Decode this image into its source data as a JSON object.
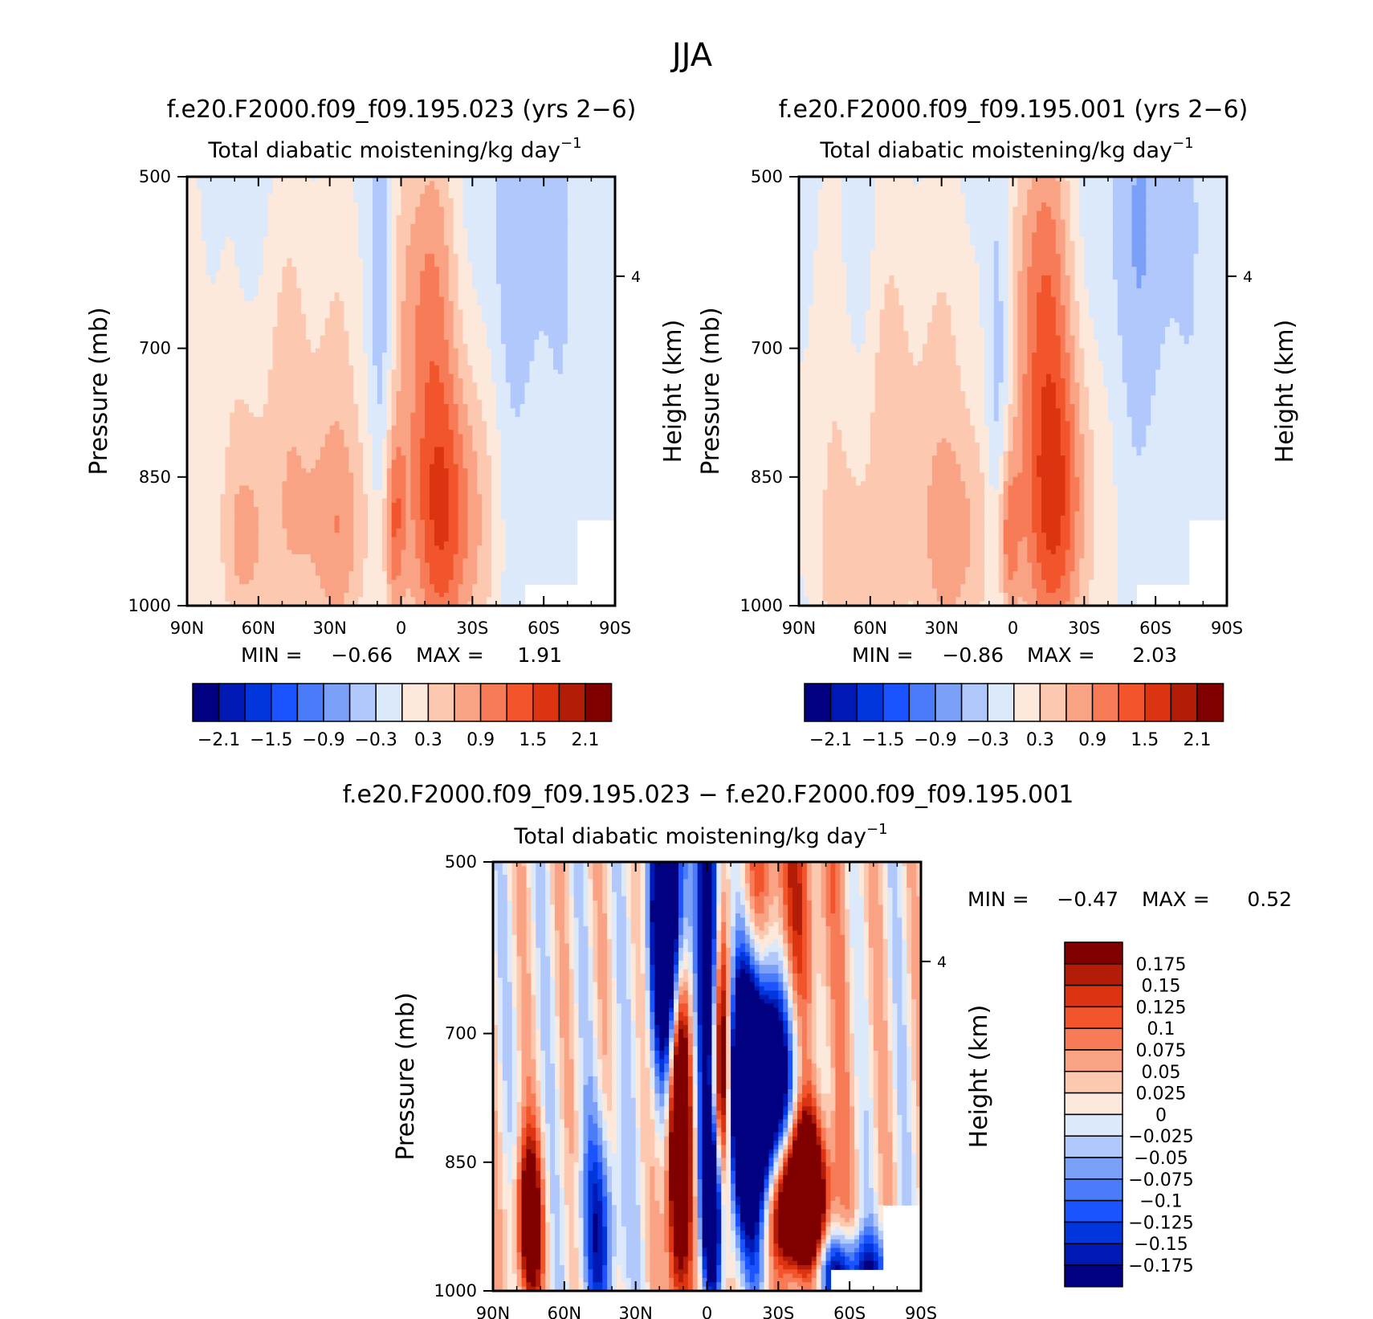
{
  "figure_title": "JJA",
  "colors": {
    "main_scale": [
      "#000080",
      "#0018b4",
      "#0036dc",
      "#1a53ff",
      "#4a7cfa",
      "#7aa0f7",
      "#b0c8fb",
      "#dbe9fb",
      "#fde8dc",
      "#fcc8b0",
      "#f9a384",
      "#f77b57",
      "#f2552c",
      "#dc3410",
      "#b31c07",
      "#800000"
    ],
    "diff_scale": [
      "#000080",
      "#0018b4",
      "#0036dc",
      "#1a53ff",
      "#4a7cfa",
      "#7aa0f7",
      "#b0c8fb",
      "#dbe9fb",
      "#fde8dc",
      "#fcc8b0",
      "#f9a384",
      "#f77b57",
      "#f2552c",
      "#dc3410",
      "#b31c07",
      "#800000"
    ]
  },
  "chart_data": [
    {
      "type": "heatmap",
      "title": "f.e20.F2000.f09_f09.195.023 (yrs 2−6)",
      "subtitle": "Total diabatic moistening/kg day",
      "subtitle_exponent": "−1",
      "xlabel": "",
      "ylabel": "Pressure (mb)",
      "right_label": "Height (km)",
      "x_ticks": [
        "90N",
        "60N",
        "30N",
        "0",
        "30S",
        "60S",
        "90S"
      ],
      "xlim": [
        90,
        -90
      ],
      "y_ticks": [
        500,
        700,
        850,
        1000
      ],
      "right_ticks": [
        "4"
      ],
      "ylim": [
        500,
        1000
      ],
      "min_label": "MIN =",
      "min_value": "−0.66",
      "max_label": "MAX =",
      "max_value": "1.91",
      "stats": {
        "min": -0.66,
        "max": 1.91
      },
      "colorbar_labels": [
        "−2.1",
        "−1.5",
        "−0.9",
        "−0.3",
        "0.3",
        "0.9",
        "1.5",
        "2.1"
      ],
      "colorbar_levels": [
        -2.1,
        -1.8,
        -1.5,
        -1.2,
        -0.9,
        -0.6,
        -0.3,
        0,
        0.3,
        0.6,
        0.9,
        1.2,
        1.5,
        1.8,
        2.1
      ],
      "pattern": "a"
    },
    {
      "type": "heatmap",
      "title": "f.e20.F2000.f09_f09.195.001 (yrs 2−6)",
      "subtitle": "Total diabatic moistening/kg day",
      "subtitle_exponent": "−1",
      "xlabel": "",
      "ylabel": "Pressure (mb)",
      "right_label": "Height (km)",
      "x_ticks": [
        "90N",
        "60N",
        "30N",
        "0",
        "30S",
        "60S",
        "90S"
      ],
      "xlim": [
        90,
        -90
      ],
      "y_ticks": [
        500,
        700,
        850,
        1000
      ],
      "right_ticks": [
        "4"
      ],
      "ylim": [
        500,
        1000
      ],
      "min_label": "MIN =",
      "min_value": "−0.86",
      "max_label": "MAX =",
      "max_value": "2.03",
      "stats": {
        "min": -0.86,
        "max": 2.03
      },
      "colorbar_labels": [
        "−2.1",
        "−1.5",
        "−0.9",
        "−0.3",
        "0.3",
        "0.9",
        "1.5",
        "2.1"
      ],
      "colorbar_levels": [
        -2.1,
        -1.8,
        -1.5,
        -1.2,
        -0.9,
        -0.6,
        -0.3,
        0,
        0.3,
        0.6,
        0.9,
        1.2,
        1.5,
        1.8,
        2.1
      ],
      "pattern": "b"
    },
    {
      "type": "heatmap",
      "title": "f.e20.F2000.f09_f09.195.023 − f.e20.F2000.f09_f09.195.001",
      "subtitle": "Total diabatic moistening/kg day",
      "subtitle_exponent": "−1",
      "xlabel": "",
      "ylabel": "Pressure (mb)",
      "right_label": "Height (km)",
      "x_ticks": [
        "90N",
        "60N",
        "30N",
        "0",
        "30S",
        "60S",
        "90S"
      ],
      "xlim": [
        90,
        -90
      ],
      "y_ticks": [
        500,
        700,
        850,
        1000
      ],
      "right_ticks": [
        "4"
      ],
      "ylim": [
        500,
        1000
      ],
      "min_label": "MIN =",
      "min_value": "−0.47",
      "max_label": "MAX =",
      "max_value": "0.52",
      "stats": {
        "min": -0.47,
        "max": 0.52
      },
      "colorbar_labels": [
        "0.175",
        "0.15",
        "0.125",
        "0.1",
        "0.075",
        "0.05",
        "0.025",
        "0",
        "−0.025",
        "−0.05",
        "−0.075",
        "−0.1",
        "−0.125",
        "−0.15",
        "−0.175"
      ],
      "colorbar_levels": [
        0.175,
        0.15,
        0.125,
        0.1,
        0.075,
        0.05,
        0.025,
        0,
        -0.025,
        -0.05,
        -0.075,
        -0.1,
        -0.125,
        -0.15,
        -0.175
      ],
      "pattern": "diff"
    }
  ]
}
